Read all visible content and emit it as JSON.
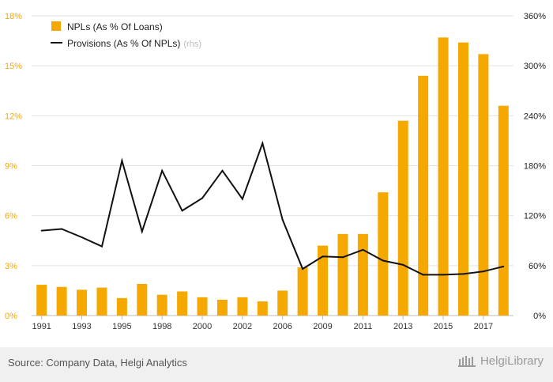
{
  "chart_data": {
    "type": "bar",
    "x_tick_labels": [
      "1991",
      "1993",
      "1995",
      "1998",
      "2000",
      "2002",
      "2006",
      "2009",
      "2011",
      "2013",
      "2015",
      "2017"
    ],
    "left_axis": {
      "ticks": [
        "0%",
        "3%",
        "6%",
        "9%",
        "12%",
        "15%",
        "18%"
      ],
      "min": 0,
      "max": 18
    },
    "right_axis": {
      "ticks": [
        "0%",
        "60%",
        "120%",
        "180%",
        "240%",
        "300%",
        "360%"
      ],
      "min": 0,
      "max": 360
    },
    "series": [
      {
        "name": "NPLs (As % Of Loans)",
        "type": "bar",
        "axis": "left",
        "color": "#f5a800",
        "values": [
          1.85,
          1.72,
          1.55,
          1.68,
          1.05,
          1.9,
          1.25,
          1.45,
          1.1,
          0.95,
          1.1,
          0.85,
          1.5,
          2.9,
          4.2,
          4.9,
          4.9,
          7.4,
          11.7,
          14.4,
          16.7,
          16.4,
          15.7,
          12.6
        ]
      },
      {
        "name": "Provisions (As % Of NPLs)",
        "suffix": "(rhs)",
        "type": "line",
        "axis": "right",
        "color": "#111111",
        "values": [
          102,
          104,
          94,
          83,
          186,
          101,
          174,
          126,
          141,
          174,
          140,
          207,
          115,
          56,
          71,
          70,
          79,
          66,
          61,
          49,
          49,
          50,
          53,
          59
        ]
      }
    ],
    "legend_position": "top-left",
    "grid": true
  },
  "footer": {
    "source": "Source: Company Data, Helgi Analytics",
    "brand": "HelgiLibrary"
  }
}
